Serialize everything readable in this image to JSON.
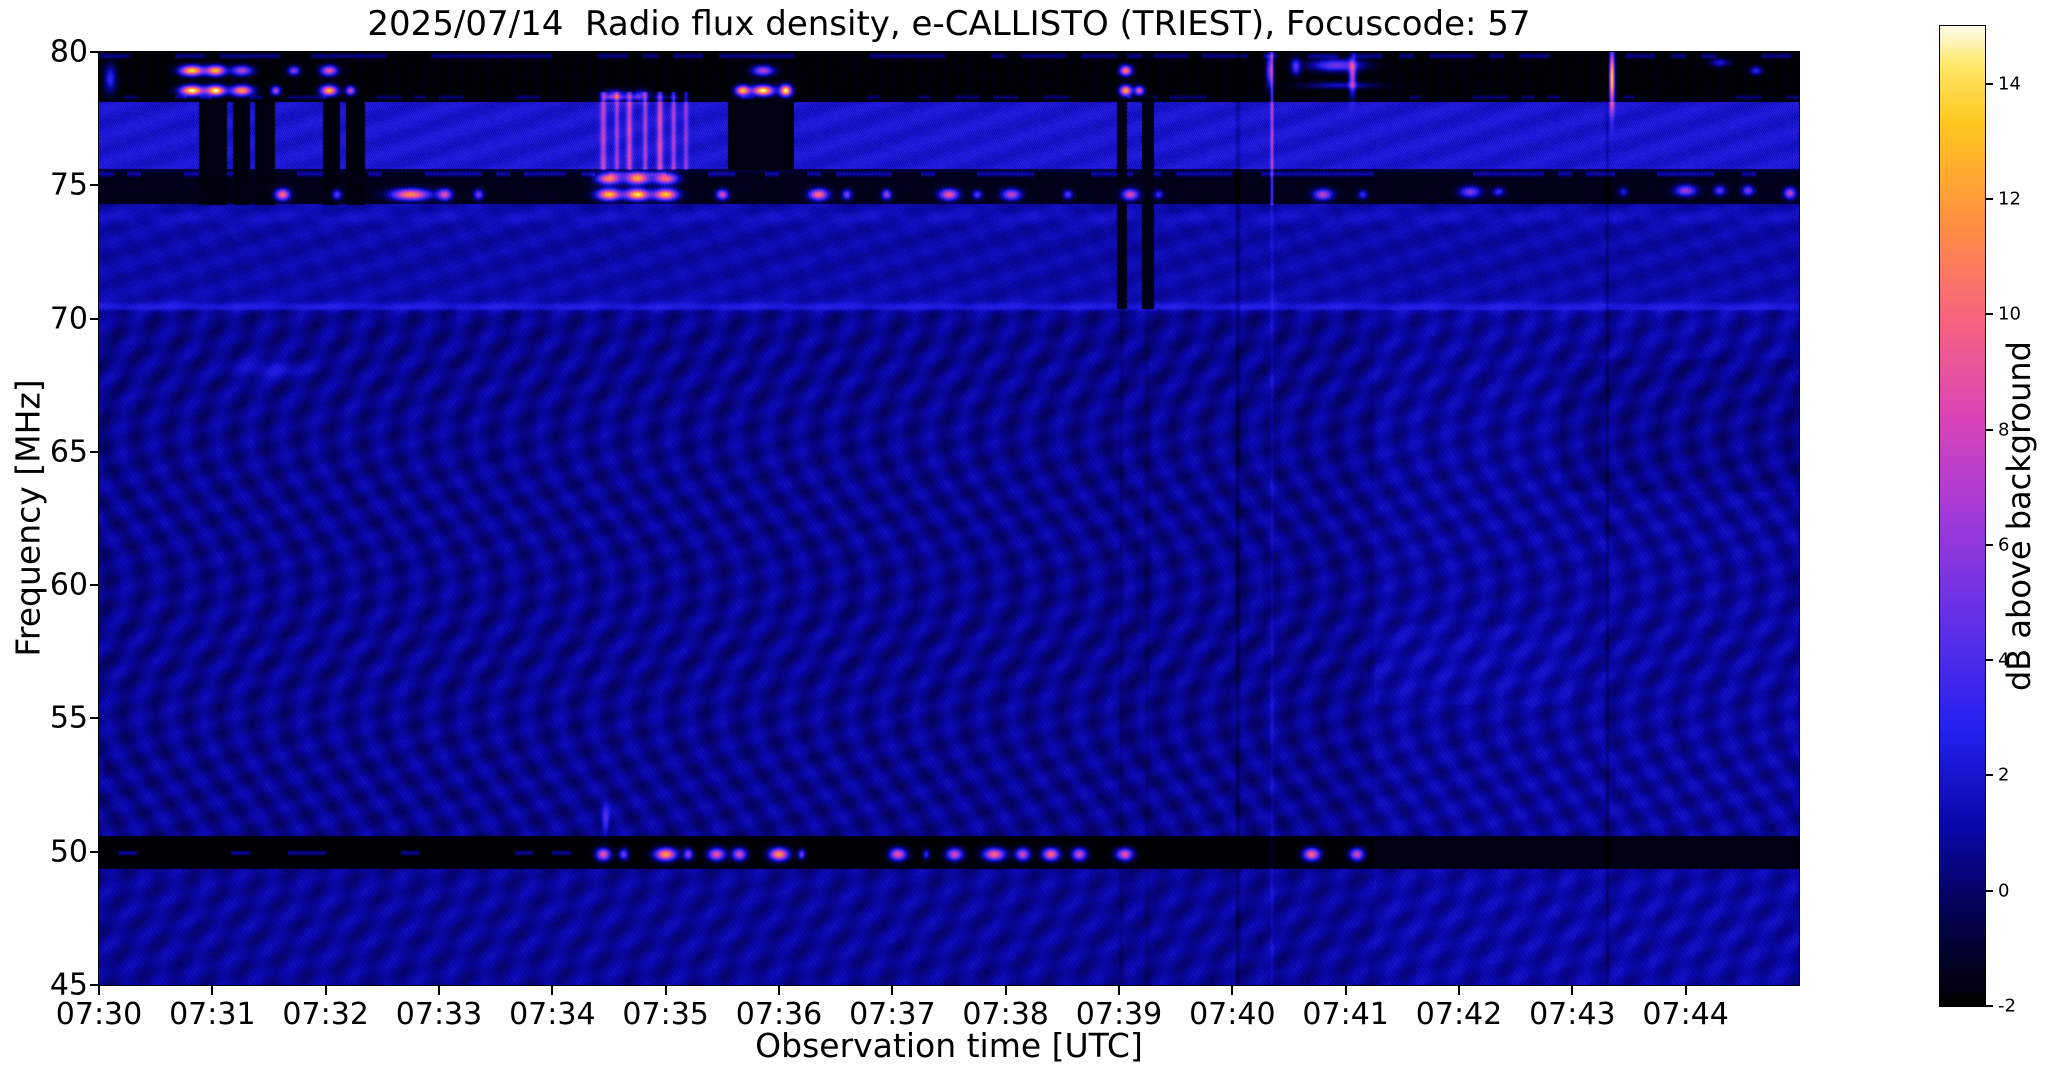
{
  "chart_data": {
    "type": "heatmap",
    "title": "2025/07/14  Radio flux density, e-CALLISTO (TRIEST), Focuscode: 57",
    "date": "2025/07/14",
    "instrument": "e-CALLISTO",
    "station": "TRIEST",
    "focuscode": 57,
    "xlabel": "Observation time [UTC]",
    "ylabel": "Frequency [MHz]",
    "x_tick_labels": [
      "07:30",
      "07:31",
      "07:32",
      "07:33",
      "07:34",
      "07:35",
      "07:36",
      "07:37",
      "07:38",
      "07:39",
      "07:40",
      "07:41",
      "07:42",
      "07:43",
      "07:44"
    ],
    "x_start": "07:30",
    "x_total_minutes": 15,
    "y_ticks": [
      80,
      75,
      70,
      65,
      60,
      55,
      50,
      45
    ],
    "ylim": [
      45,
      80
    ],
    "grid": false,
    "colorbar": {
      "label": "dB above background",
      "vmin": -2,
      "vmax": 15,
      "ticks": [
        14,
        12,
        10,
        8,
        6,
        4,
        2,
        0,
        -2
      ],
      "position": "right"
    },
    "colormap_stops": [
      [
        0.0,
        "#000000"
      ],
      [
        0.09,
        "#03024f"
      ],
      [
        0.18,
        "#0a07a8"
      ],
      [
        0.28,
        "#2420ee"
      ],
      [
        0.38,
        "#5a2fe8"
      ],
      [
        0.5,
        "#a33ad8"
      ],
      [
        0.6,
        "#d944b8"
      ],
      [
        0.7,
        "#f8637f"
      ],
      [
        0.8,
        "#ff9140"
      ],
      [
        0.9,
        "#ffc61e"
      ],
      [
        0.96,
        "#ffe96a"
      ],
      [
        1.0,
        "#fffdf0"
      ]
    ],
    "bands": [
      {
        "name": "rfi-black-78-80",
        "f0": 78.12,
        "f1": 80.01,
        "base": -1.85,
        "stripeA": 0.22,
        "stripeTF": 300,
        "stripeFF": 0,
        "chev": 0,
        "rip": 0,
        "noise": 0.12
      },
      {
        "name": "blue-speckle-75.6-78",
        "f0": 75.62,
        "f1": 78.12,
        "base": 2.1,
        "stripeA": 1.0,
        "stripeTF": 310,
        "stripeFF": 40,
        "chev": 0,
        "rip": 0.35,
        "noise": 0.3
      },
      {
        "name": "rfi-black-74.3-75.6",
        "f0": 74.28,
        "f1": 75.62,
        "base": -1.5,
        "stripeA": 0.3,
        "stripeTF": 200,
        "stripeFF": 10,
        "chev": 0,
        "rip": 0,
        "noise": 0.18
      },
      {
        "name": "mid-blue-70.3-74.3",
        "f0": 70.32,
        "f1": 74.28,
        "base": 1.15,
        "stripeA": 0.55,
        "stripeTF": 280,
        "stripeFF": 30,
        "chev": 0.15,
        "rip": 0.3,
        "noise": 0.25
      },
      {
        "name": "main-background",
        "f0": 50.58,
        "f1": 70.32,
        "base": 0.62,
        "stripeA": 0.18,
        "stripeTF": 150,
        "stripeFF": 25,
        "chev": 0.5,
        "rip": 0.3,
        "noise": 0.2
      },
      {
        "name": "rfi-black-50",
        "f0": 49.36,
        "f1": 50.58,
        "base": -1.9,
        "stripeA": 0,
        "stripeTF": 0,
        "stripeFF": 0,
        "chev": 0,
        "rip": 0,
        "noise": 0.12
      },
      {
        "name": "bottom-background",
        "f0": 44.99,
        "f1": 49.36,
        "base": 0.78,
        "stripeA": 0.2,
        "stripeTF": 150,
        "stripeFF": 25,
        "chev": 0.42,
        "rip": 0.28,
        "noise": 0.2
      }
    ],
    "hlines": [
      {
        "f": 70.45,
        "sf": 0.16,
        "a": 1.3
      },
      {
        "f": 73.8,
        "sf": 0.25,
        "a": 0.5
      },
      {
        "f": 75.55,
        "sf": 0.1,
        "a": 0.6
      }
    ],
    "dash_rows": [
      {
        "f": 79.85,
        "sf": 0.14,
        "seg": 7.5,
        "prob": 0.55,
        "a": 2.6,
        "t0": 0,
        "t1": 15,
        "salt": 1.1
      },
      {
        "f": 78.3,
        "sf": 0.12,
        "seg": 9,
        "prob": 0.3,
        "a": 2.2,
        "t0": 0,
        "t1": 15,
        "salt": 2.3
      },
      {
        "f": 75.42,
        "sf": 0.14,
        "seg": 8,
        "prob": 0.55,
        "a": 2.8,
        "t0": 0,
        "t1": 15,
        "salt": 3.9
      },
      {
        "f": 49.95,
        "sf": 0.13,
        "seg": 6,
        "prob": 0.32,
        "a": 3.0,
        "t0": 0,
        "t1": 4.35,
        "salt": 5.2
      }
    ],
    "patches": [
      [
        11.25,
        15,
        45,
        70.4,
        0.28
      ],
      [
        12.9,
        15,
        63.5,
        68.5,
        -0.3
      ],
      [
        11.25,
        13.0,
        55.5,
        58.5,
        0.25
      ]
    ],
    "dark_columns": [
      [
        0.88,
        1.12,
        74.28,
        78.12,
        -1.7
      ],
      [
        1.18,
        1.32,
        74.28,
        78.12,
        -1.7
      ],
      [
        1.38,
        1.54,
        74.28,
        78.12,
        -1.7
      ],
      [
        1.98,
        2.12,
        74.28,
        78.12,
        -1.7
      ],
      [
        2.18,
        2.34,
        74.28,
        78.12,
        -1.7
      ],
      [
        5.55,
        6.12,
        75.62,
        78.12,
        -1.7
      ],
      [
        8.98,
        9.06,
        70.4,
        80,
        -1.6
      ],
      [
        9.2,
        9.3,
        70.4,
        80,
        -1.6
      ]
    ],
    "bright_columns": [
      [
        4.45,
        0.025,
        75.6,
        78.5,
        5.5
      ],
      [
        4.57,
        0.02,
        75.6,
        78.5,
        4.5
      ],
      [
        4.68,
        0.025,
        75.6,
        78.5,
        6
      ],
      [
        4.82,
        0.02,
        75.6,
        78.5,
        5
      ],
      [
        4.95,
        0.025,
        75.6,
        78.5,
        6.5
      ],
      [
        5.07,
        0.02,
        75.6,
        78.5,
        5
      ],
      [
        5.18,
        0.02,
        75.6,
        78.5,
        4
      ],
      [
        10.35,
        0.012,
        74.3,
        80,
        6
      ],
      [
        10.35,
        0.015,
        45,
        74.3,
        0.9
      ],
      [
        10.05,
        0.02,
        45,
        80,
        -1.0
      ],
      [
        13.31,
        0.015,
        45,
        80,
        -1.0
      ],
      [
        9.02,
        0.02,
        45,
        70.4,
        -0.5
      ],
      [
        9.25,
        0.02,
        45,
        70.4,
        -0.5
      ]
    ],
    "bursts": [
      [
        0.1,
        79.0,
        0.05,
        0.5,
        5
      ],
      [
        0.82,
        78.55,
        0.1,
        0.18,
        17
      ],
      [
        0.82,
        79.3,
        0.1,
        0.18,
        16
      ],
      [
        1.03,
        78.55,
        0.08,
        0.18,
        17
      ],
      [
        1.03,
        79.3,
        0.08,
        0.18,
        15
      ],
      [
        1.26,
        78.55,
        0.09,
        0.18,
        14
      ],
      [
        1.26,
        79.3,
        0.09,
        0.18,
        9
      ],
      [
        1.56,
        78.55,
        0.04,
        0.16,
        9
      ],
      [
        1.72,
        79.3,
        0.05,
        0.16,
        8
      ],
      [
        2.03,
        78.55,
        0.07,
        0.18,
        15
      ],
      [
        2.03,
        79.3,
        0.07,
        0.18,
        11
      ],
      [
        2.22,
        78.55,
        0.04,
        0.16,
        10
      ],
      [
        4.55,
        78.35,
        0.1,
        0.2,
        7
      ],
      [
        4.78,
        78.35,
        0.07,
        0.2,
        6
      ],
      [
        5.68,
        78.55,
        0.06,
        0.18,
        15
      ],
      [
        5.86,
        78.55,
        0.09,
        0.18,
        17
      ],
      [
        5.86,
        79.3,
        0.09,
        0.18,
        9
      ],
      [
        6.06,
        78.55,
        0.05,
        0.2,
        17
      ],
      [
        9.06,
        78.55,
        0.05,
        0.18,
        15
      ],
      [
        9.06,
        79.3,
        0.05,
        0.18,
        13
      ],
      [
        9.18,
        78.55,
        0.04,
        0.16,
        11
      ],
      [
        10.33,
        79.3,
        0.03,
        0.6,
        7
      ],
      [
        10.56,
        79.45,
        0.04,
        0.3,
        6
      ],
      [
        10.92,
        79.5,
        0.22,
        0.22,
        7
      ],
      [
        10.95,
        78.75,
        0.3,
        0.12,
        3.5
      ],
      [
        11.06,
        79.1,
        0.03,
        0.7,
        9
      ],
      [
        13.35,
        79.0,
        0.022,
        1.1,
        16
      ],
      [
        14.3,
        79.6,
        0.08,
        0.15,
        4
      ],
      [
        14.62,
        79.3,
        0.05,
        0.15,
        5
      ],
      [
        1.62,
        74.65,
        0.06,
        0.2,
        12
      ],
      [
        2.1,
        74.65,
        0.04,
        0.18,
        6
      ],
      [
        2.75,
        74.65,
        0.16,
        0.2,
        13
      ],
      [
        3.05,
        74.65,
        0.06,
        0.2,
        10
      ],
      [
        3.35,
        74.65,
        0.04,
        0.18,
        7
      ],
      [
        4.5,
        74.65,
        0.1,
        0.2,
        15
      ],
      [
        4.5,
        75.25,
        0.1,
        0.2,
        13
      ],
      [
        4.75,
        74.65,
        0.1,
        0.2,
        16
      ],
      [
        4.75,
        75.25,
        0.1,
        0.2,
        14
      ],
      [
        5.0,
        74.65,
        0.1,
        0.2,
        15
      ],
      [
        5.0,
        75.25,
        0.1,
        0.2,
        12
      ],
      [
        5.5,
        74.65,
        0.05,
        0.18,
        10
      ],
      [
        6.35,
        74.65,
        0.08,
        0.2,
        12
      ],
      [
        6.6,
        74.65,
        0.04,
        0.18,
        7
      ],
      [
        6.95,
        74.65,
        0.04,
        0.18,
        8
      ],
      [
        7.5,
        74.65,
        0.08,
        0.2,
        11
      ],
      [
        7.75,
        74.65,
        0.04,
        0.16,
        6
      ],
      [
        8.05,
        74.65,
        0.08,
        0.2,
        9
      ],
      [
        8.55,
        74.65,
        0.04,
        0.16,
        6
      ],
      [
        9.1,
        74.65,
        0.07,
        0.2,
        10
      ],
      [
        9.35,
        74.65,
        0.04,
        0.16,
        5
      ],
      [
        10.8,
        74.65,
        0.08,
        0.2,
        9
      ],
      [
        11.15,
        74.65,
        0.04,
        0.16,
        5
      ],
      [
        12.1,
        74.75,
        0.09,
        0.2,
        7
      ],
      [
        12.35,
        74.75,
        0.05,
        0.16,
        5
      ],
      [
        13.45,
        74.75,
        0.04,
        0.16,
        4
      ],
      [
        14.0,
        74.8,
        0.09,
        0.2,
        8
      ],
      [
        14.3,
        74.8,
        0.05,
        0.18,
        6
      ],
      [
        14.55,
        74.8,
        0.05,
        0.18,
        7
      ],
      [
        14.92,
        74.7,
        0.05,
        0.2,
        9
      ],
      [
        4.45,
        49.9,
        0.06,
        0.22,
        11
      ],
      [
        4.47,
        51.2,
        0.03,
        0.5,
        4
      ],
      [
        4.63,
        49.9,
        0.04,
        0.2,
        7
      ],
      [
        5.0,
        49.9,
        0.09,
        0.22,
        14
      ],
      [
        5.2,
        49.9,
        0.04,
        0.2,
        8
      ],
      [
        5.45,
        49.9,
        0.07,
        0.22,
        11
      ],
      [
        5.65,
        49.9,
        0.06,
        0.22,
        10
      ],
      [
        6.0,
        49.9,
        0.08,
        0.22,
        14
      ],
      [
        6.2,
        49.9,
        0.03,
        0.18,
        7
      ],
      [
        7.05,
        49.9,
        0.07,
        0.22,
        11
      ],
      [
        7.3,
        49.9,
        0.03,
        0.18,
        5
      ],
      [
        7.55,
        49.9,
        0.07,
        0.22,
        10
      ],
      [
        7.9,
        49.9,
        0.09,
        0.22,
        12
      ],
      [
        8.15,
        49.9,
        0.06,
        0.22,
        10
      ],
      [
        8.4,
        49.9,
        0.07,
        0.22,
        12
      ],
      [
        8.65,
        49.9,
        0.06,
        0.22,
        10
      ],
      [
        9.05,
        49.9,
        0.07,
        0.22,
        11
      ],
      [
        10.7,
        49.9,
        0.07,
        0.22,
        12
      ],
      [
        11.1,
        49.9,
        0.06,
        0.22,
        10
      ],
      [
        1.5,
        68.1,
        0.3,
        0.3,
        1.6
      ]
    ]
  }
}
